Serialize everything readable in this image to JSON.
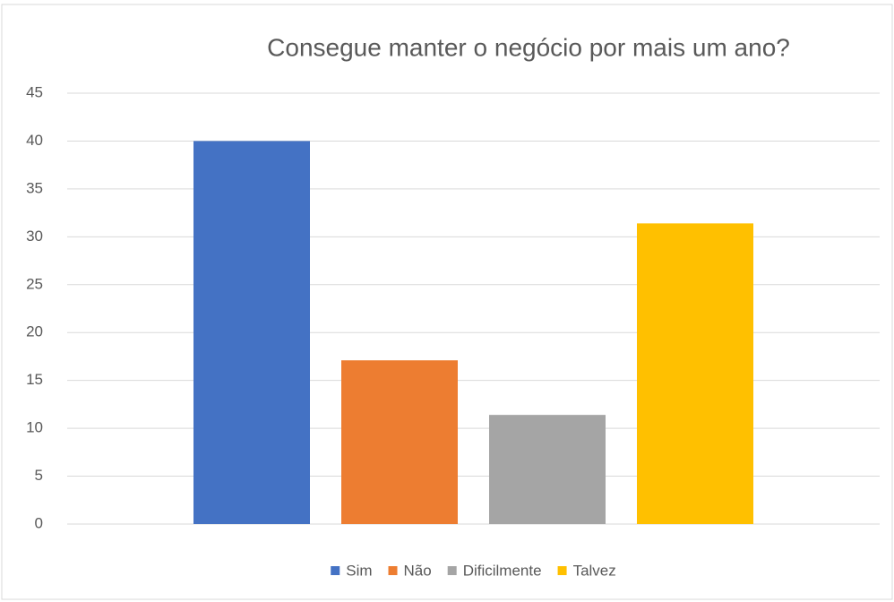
{
  "chart_data": {
    "type": "bar",
    "title": "Consegue manter o negócio por mais um ano?",
    "categories": [
      null
    ],
    "series": [
      {
        "name": "Sim",
        "color": "#4472c4",
        "values": [
          40
        ]
      },
      {
        "name": "Não",
        "color": "#ed7d31",
        "values": [
          17.1
        ]
      },
      {
        "name": "Dificilmente",
        "color": "#a5a5a5",
        "values": [
          11.4
        ]
      },
      {
        "name": "Talvez",
        "color": "#ffc000",
        "values": [
          31.4
        ]
      }
    ],
    "ylim": [
      0,
      45
    ],
    "yticks": [
      0,
      5,
      10,
      15,
      20,
      25,
      30,
      35,
      40,
      45
    ],
    "grid": true,
    "legend": "bottom"
  }
}
